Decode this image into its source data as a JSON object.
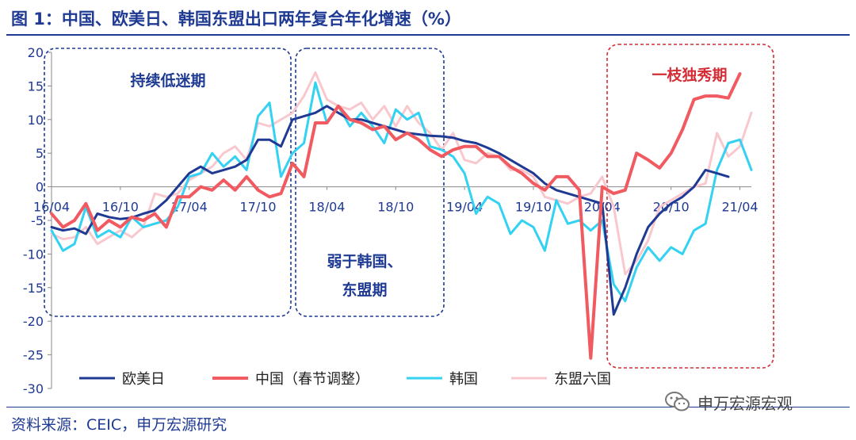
{
  "figure": {
    "title": "图 1：中国、欧美日、韩国东盟出口两年复合年化增速（%）",
    "source": "资料来源：CEIC，申万宏源研究",
    "watermark": "申万宏源宏观",
    "watermark_icon": "wechat-icon"
  },
  "chart_data": {
    "type": "line",
    "title": "图 1：中国、欧美日、韩国东盟出口两年复合年化增速（%）",
    "xlabel": "",
    "ylabel": "",
    "ylim": [
      -30,
      20
    ],
    "yticks": [
      20,
      15,
      10,
      5,
      0,
      -5,
      -10,
      -15,
      -20,
      -25,
      -30
    ],
    "x_tick_labels": [
      {
        "label": "16/04",
        "index": 0
      },
      {
        "label": "16/10",
        "index": 6
      },
      {
        "label": "17/04",
        "index": 12
      },
      {
        "label": "17/10",
        "index": 18
      },
      {
        "label": "18/04",
        "index": 24
      },
      {
        "label": "18/10",
        "index": 30
      },
      {
        "label": "19/04",
        "index": 36
      },
      {
        "label": "19/10",
        "index": 42
      },
      {
        "label": "20/04",
        "index": 48
      },
      {
        "label": "20/10",
        "index": 54
      },
      {
        "label": "21/04",
        "index": 60
      }
    ],
    "x_start": "2016-04",
    "x_end": "2021-04",
    "legend_position": "bottom",
    "grid": false,
    "series": [
      {
        "name": "欧美日",
        "color": "#1f3a93",
        "values": [
          -6,
          -6.5,
          -6.2,
          -7,
          -4,
          -4.5,
          -4.8,
          -4.6,
          -4,
          -3.5,
          -2,
          0,
          2,
          3,
          2,
          2.5,
          3,
          4,
          7,
          7,
          6,
          10,
          10.5,
          11,
          12,
          11,
          10,
          10,
          9.5,
          9,
          8.5,
          8,
          7.8,
          7.6,
          7.5,
          7.3,
          6.8,
          6.5,
          5.8,
          5,
          4,
          3,
          2,
          0.5,
          -0.5,
          -1,
          -1.5,
          -2,
          -2.5,
          -19,
          -15,
          -10,
          -6,
          -4,
          -2.5,
          -1.5,
          0,
          2.5,
          2,
          1.5,
          null
        ]
      },
      {
        "name": "中国（春节调整）",
        "color": "#f05a60",
        "values": [
          -4,
          -6,
          -5,
          -2.5,
          -6.5,
          -5,
          -6,
          -4.5,
          -5,
          -4,
          -6,
          -1.5,
          -1.5,
          0,
          -0.5,
          1,
          -0.5,
          1.5,
          -0.5,
          -1.5,
          -1,
          3.5,
          1.5,
          9.5,
          9.5,
          12,
          10,
          9.5,
          8.5,
          9,
          7,
          8,
          7,
          5.5,
          4.5,
          5.5,
          6,
          6,
          4.5,
          4.5,
          3,
          2,
          0.5,
          -0.5,
          1.5,
          1.5,
          -0.5,
          -25.5,
          0,
          -1,
          -0.5,
          5,
          4,
          2.8,
          5,
          8.5,
          13,
          13.5,
          13.5,
          13.2,
          16.8
        ]
      },
      {
        "name": "韩国",
        "color": "#33d1f2",
        "values": [
          -6.5,
          -9.5,
          -8.5,
          -3,
          -7.5,
          -6.5,
          -7.5,
          -4.5,
          -6,
          -5.5,
          -5,
          -3,
          1.5,
          2,
          5,
          3,
          4.5,
          2.5,
          10.5,
          12.5,
          1.5,
          5,
          6.5,
          15.5,
          9.5,
          12,
          9,
          11,
          9,
          6.5,
          11.5,
          10,
          11,
          6,
          5.5,
          4.5,
          2,
          -4,
          -1.5,
          -2.5,
          -7,
          -5,
          -6,
          -9.5,
          -2,
          -5.5,
          -5,
          -6.5,
          -5,
          -14.5,
          -17,
          -12,
          -9,
          -11,
          -9,
          -10,
          -6.5,
          -5.5,
          2.5,
          6.5,
          7,
          2.5
        ]
      },
      {
        "name": "东盟六国",
        "color": "#f8c8ce",
        "values": [
          -7,
          -7.8,
          -7.5,
          -6,
          -8.5,
          -7.5,
          -6.5,
          -7.5,
          -6,
          -1,
          -1.5,
          -1,
          1,
          2,
          3,
          5,
          6,
          4,
          9.5,
          9,
          10,
          11,
          13.5,
          17,
          13,
          12,
          11.5,
          12.5,
          10,
          12,
          9,
          12,
          9.5,
          8,
          5.5,
          8,
          4,
          3.5,
          5,
          4.5,
          2.5,
          2.5,
          1.5,
          -1.5,
          -2,
          -2.5,
          -1.5,
          -1,
          1.5,
          -3,
          -13,
          -11,
          -8,
          -3,
          -2,
          -1,
          0,
          0.5,
          8,
          4.5,
          6,
          11
        ]
      }
    ]
  }
}
